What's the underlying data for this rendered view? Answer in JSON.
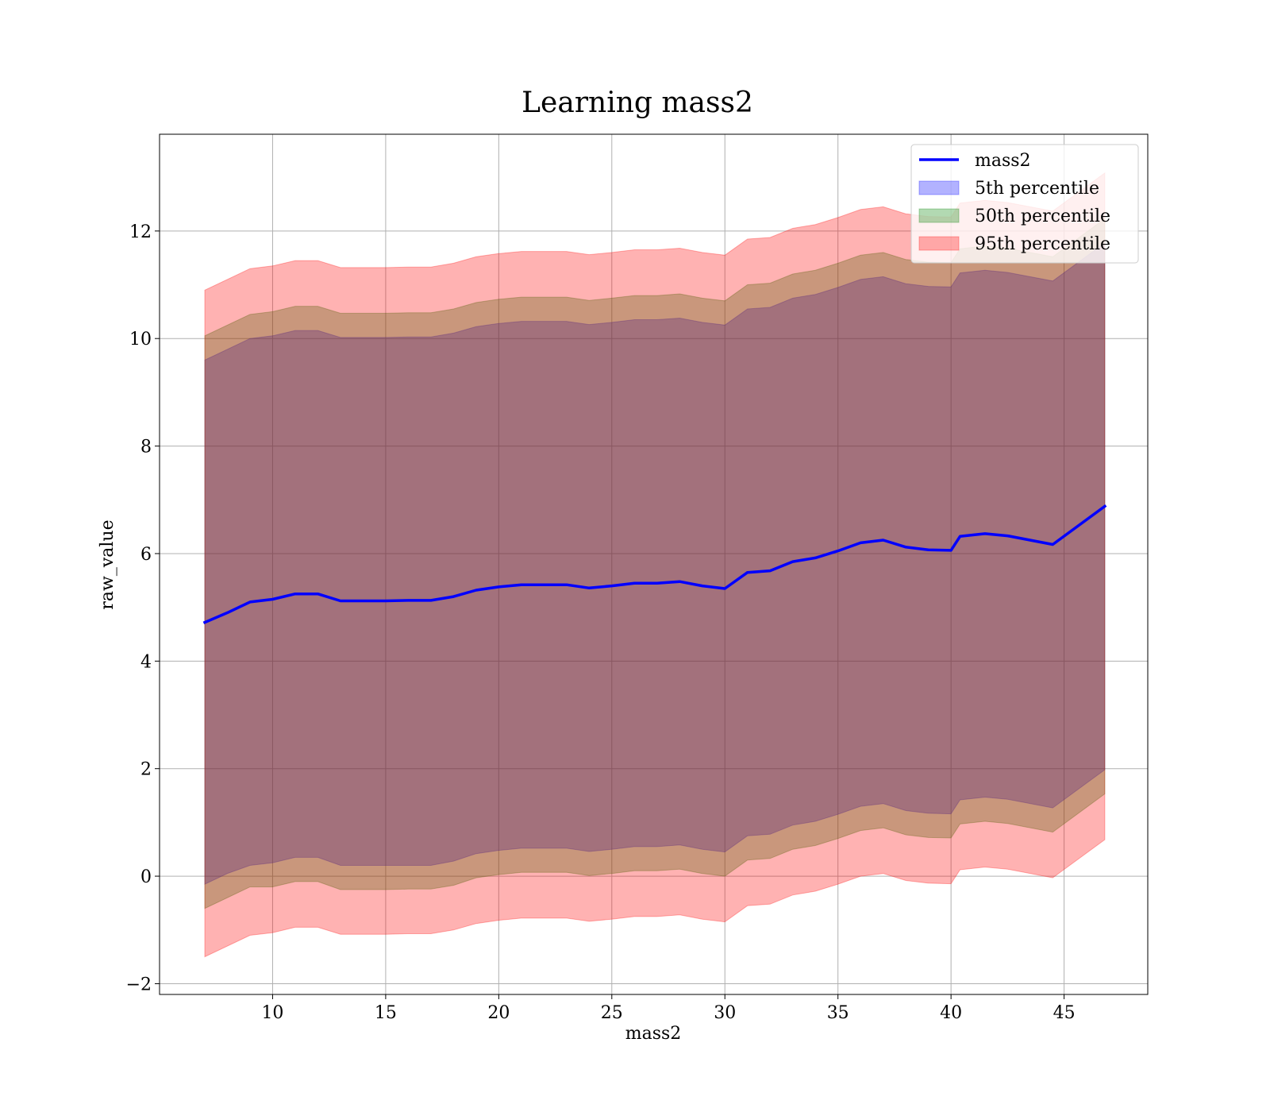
{
  "chart_data": {
    "type": "area",
    "title": "Learning mass2",
    "xlabel": "mass2",
    "ylabel": "raw_value",
    "xlim": [
      5,
      48.7
    ],
    "ylim": [
      -2.2,
      13.8
    ],
    "xticks": [
      10,
      15,
      20,
      25,
      30,
      35,
      40,
      45
    ],
    "yticks": [
      -2,
      0,
      2,
      4,
      6,
      8,
      10,
      12
    ],
    "grid": true,
    "legend_position": "top-right",
    "x": [
      7.0,
      8.0,
      9.0,
      10.0,
      11.0,
      12.0,
      13.0,
      14.0,
      15.0,
      16.0,
      17.0,
      18.0,
      19.0,
      20.0,
      21.0,
      22.0,
      23.0,
      24.0,
      25.0,
      26.0,
      27.0,
      28.0,
      29.0,
      30.0,
      31.0,
      32.0,
      33.0,
      34.0,
      35.0,
      36.0,
      37.0,
      38.0,
      39.0,
      40.0,
      40.4,
      41.5,
      42.5,
      44.5,
      46.8
    ],
    "series": [
      {
        "name": "mass2",
        "kind": "line",
        "color": "#0000ff",
        "values": [
          4.72,
          4.9,
          5.1,
          5.15,
          5.25,
          5.25,
          5.12,
          5.12,
          5.12,
          5.13,
          5.13,
          5.2,
          5.32,
          5.38,
          5.42,
          5.42,
          5.42,
          5.36,
          5.4,
          5.45,
          5.45,
          5.48,
          5.4,
          5.35,
          5.65,
          5.68,
          5.85,
          5.92,
          6.05,
          6.2,
          6.25,
          6.12,
          6.07,
          6.06,
          6.32,
          6.37,
          6.33,
          6.17,
          6.88
        ]
      },
      {
        "name": "5th percentile",
        "kind": "band",
        "color": "#0000ff",
        "opacity": 0.3,
        "lower": [
          -0.15,
          0.05,
          0.2,
          0.25,
          0.35,
          0.35,
          0.2,
          0.2,
          0.2,
          0.2,
          0.2,
          0.28,
          0.42,
          0.48,
          0.52,
          0.52,
          0.52,
          0.46,
          0.5,
          0.55,
          0.55,
          0.58,
          0.5,
          0.45,
          0.75,
          0.78,
          0.95,
          1.02,
          1.15,
          1.3,
          1.35,
          1.22,
          1.17,
          1.16,
          1.42,
          1.47,
          1.43,
          1.27,
          1.98
        ],
        "upper": [
          9.6,
          9.8,
          10.0,
          10.05,
          10.15,
          10.15,
          10.02,
          10.02,
          10.02,
          10.03,
          10.03,
          10.1,
          10.22,
          10.28,
          10.32,
          10.32,
          10.32,
          10.26,
          10.3,
          10.35,
          10.35,
          10.38,
          10.3,
          10.25,
          10.55,
          10.58,
          10.75,
          10.82,
          10.95,
          11.1,
          11.15,
          11.02,
          10.97,
          10.96,
          11.22,
          11.27,
          11.23,
          11.07,
          11.78
        ]
      },
      {
        "name": "50th percentile",
        "kind": "band",
        "color": "#008000",
        "opacity": 0.3,
        "lower": [
          -0.6,
          -0.4,
          -0.2,
          -0.2,
          -0.1,
          -0.1,
          -0.25,
          -0.25,
          -0.25,
          -0.24,
          -0.24,
          -0.17,
          -0.03,
          0.03,
          0.07,
          0.07,
          0.07,
          0.01,
          0.05,
          0.1,
          0.1,
          0.13,
          0.05,
          0.0,
          0.3,
          0.33,
          0.5,
          0.57,
          0.7,
          0.85,
          0.9,
          0.77,
          0.72,
          0.71,
          0.97,
          1.02,
          0.98,
          0.82,
          1.53
        ],
        "upper": [
          10.05,
          10.25,
          10.45,
          10.5,
          10.6,
          10.6,
          10.47,
          10.47,
          10.47,
          10.48,
          10.48,
          10.55,
          10.67,
          10.73,
          10.77,
          10.77,
          10.77,
          10.71,
          10.75,
          10.8,
          10.8,
          10.83,
          10.75,
          10.7,
          11.0,
          11.03,
          11.2,
          11.27,
          11.4,
          11.55,
          11.6,
          11.47,
          11.42,
          11.41,
          11.67,
          11.72,
          11.68,
          11.52,
          12.23
        ]
      },
      {
        "name": "95th percentile",
        "kind": "band",
        "color": "#ff0000",
        "opacity": 0.3,
        "lower": [
          -1.5,
          -1.3,
          -1.1,
          -1.05,
          -0.95,
          -0.95,
          -1.08,
          -1.08,
          -1.08,
          -1.07,
          -1.07,
          -1.0,
          -0.88,
          -0.82,
          -0.78,
          -0.78,
          -0.78,
          -0.84,
          -0.8,
          -0.75,
          -0.75,
          -0.72,
          -0.8,
          -0.85,
          -0.55,
          -0.52,
          -0.35,
          -0.28,
          -0.15,
          0.0,
          0.05,
          -0.08,
          -0.13,
          -0.14,
          0.12,
          0.17,
          0.13,
          -0.03,
          0.68
        ],
        "upper": [
          10.9,
          11.1,
          11.3,
          11.35,
          11.45,
          11.45,
          11.32,
          11.32,
          11.32,
          11.33,
          11.33,
          11.4,
          11.52,
          11.58,
          11.62,
          11.62,
          11.62,
          11.56,
          11.6,
          11.65,
          11.65,
          11.68,
          11.6,
          11.55,
          11.85,
          11.88,
          12.05,
          12.12,
          12.25,
          12.4,
          12.45,
          12.32,
          12.27,
          12.26,
          12.52,
          12.57,
          12.53,
          12.37,
          13.08
        ]
      }
    ]
  }
}
